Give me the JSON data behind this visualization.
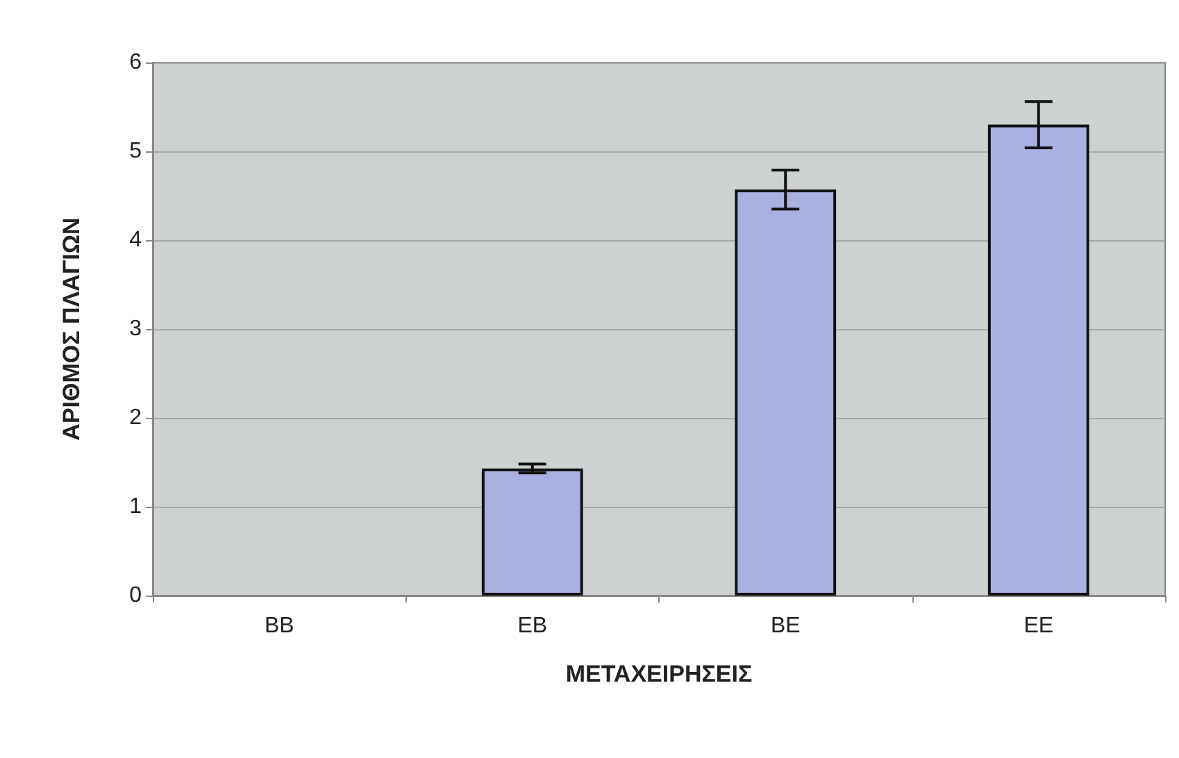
{
  "chart_data": {
    "type": "bar",
    "xlabel": "ΜΕΤΑΧΕΙΡΗΣΕΙΣ",
    "ylabel": "ΑΡΙΘΜΟΣ ΠΛΑΓΙΩΝ",
    "categories": [
      "BB",
      "EB",
      "BE",
      "EE"
    ],
    "values": [
      0,
      1.43,
      4.57,
      5.3
    ],
    "errors": [
      null,
      0.05,
      0.22,
      0.26
    ],
    "color": "#aab0e2",
    "ylim": [
      0,
      6
    ],
    "yticks": [
      0,
      1,
      2,
      3,
      4,
      5,
      6
    ],
    "grid": "y"
  }
}
